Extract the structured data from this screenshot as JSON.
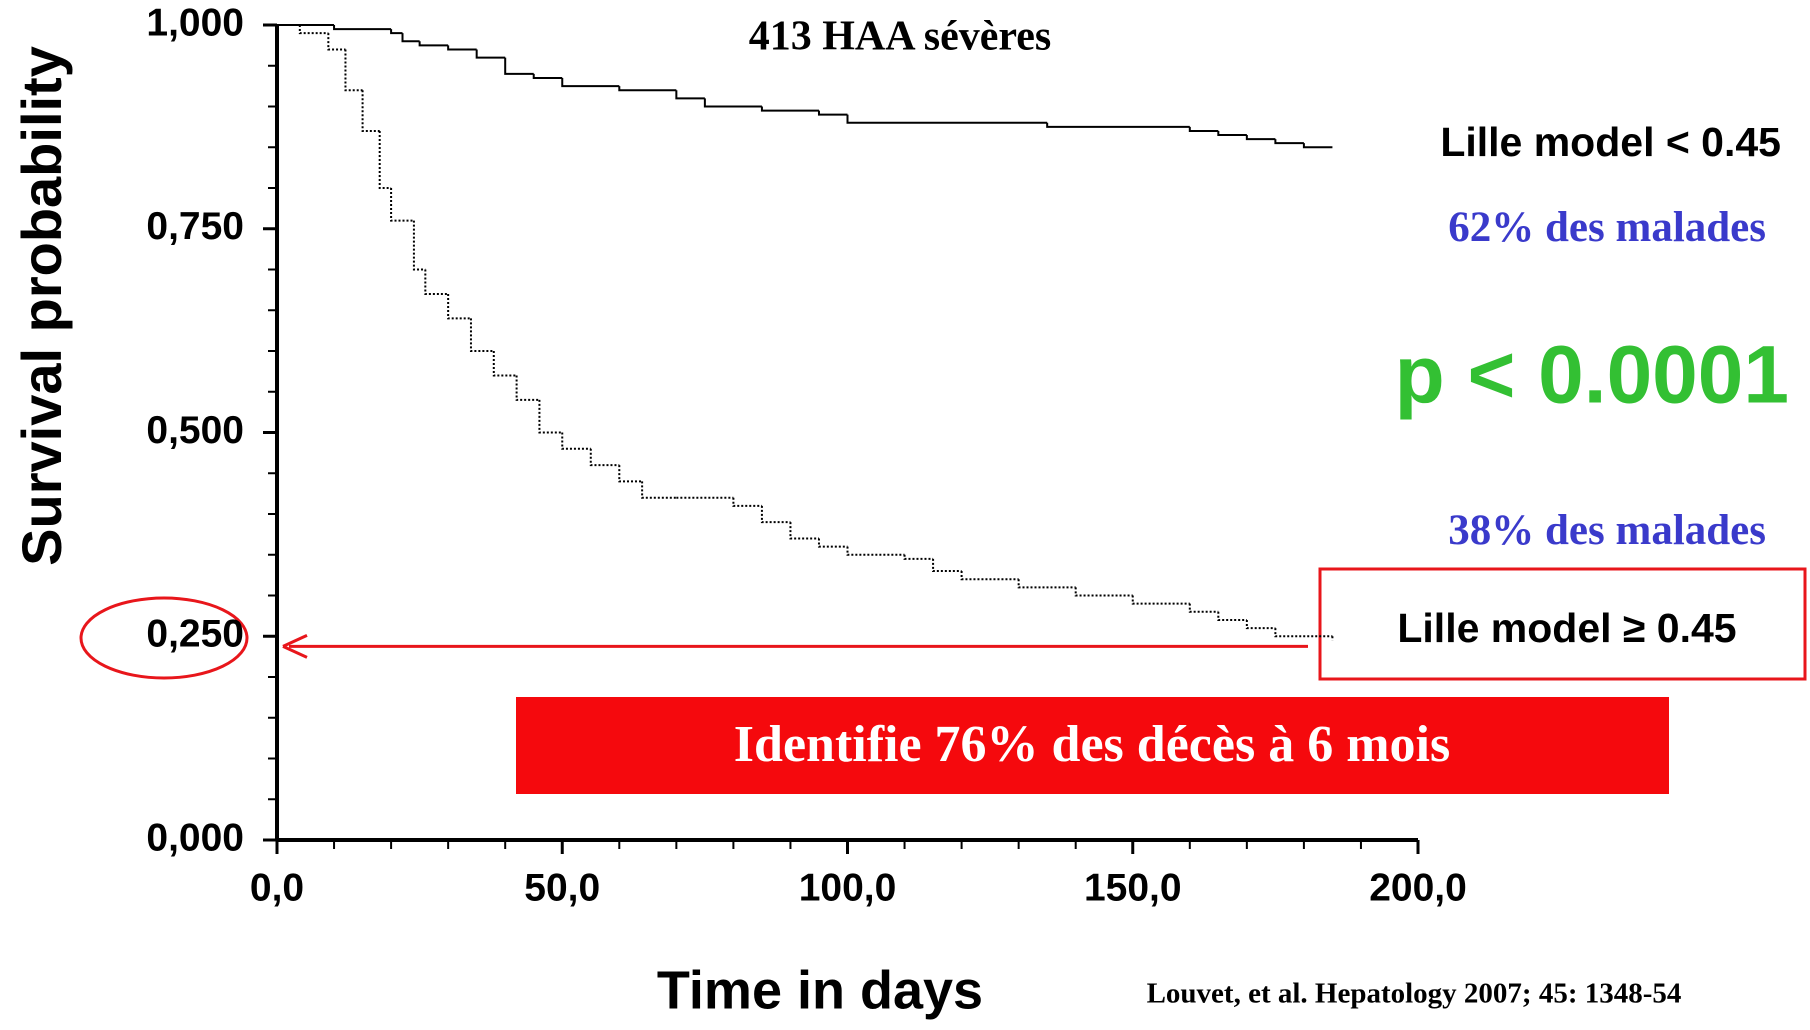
{
  "chart_data": {
    "type": "step",
    "title": "413 HAA sévères",
    "xlabel": "Time in days",
    "ylabel": "Survival probability",
    "xlim": [
      0,
      200
    ],
    "ylim": [
      0,
      1
    ],
    "xticks": [
      {
        "value": 0,
        "label": "0,0"
      },
      {
        "value": 50,
        "label": "50,0"
      },
      {
        "value": 100,
        "label": "100,0"
      },
      {
        "value": 150,
        "label": "150,0"
      },
      {
        "value": 200,
        "label": "200,0"
      }
    ],
    "yticks": [
      {
        "value": 0,
        "label": "0,000"
      },
      {
        "value": 0.25,
        "label": "0,250"
      },
      {
        "value": 0.5,
        "label": "0,500"
      },
      {
        "value": 0.75,
        "label": "0,750"
      },
      {
        "value": 1,
        "label": "1,000"
      }
    ],
    "xminor": [
      10,
      20,
      30,
      40,
      60,
      70,
      80,
      90,
      110,
      120,
      130,
      140,
      160,
      170,
      180,
      190
    ],
    "yminor": [
      0.05,
      0.1,
      0.15,
      0.2,
      0.3,
      0.35,
      0.4,
      0.45,
      0.55,
      0.6,
      0.65,
      0.7,
      0.8,
      0.85,
      0.9,
      0.95
    ],
    "series": [
      {
        "name": "Lille model < 0.45",
        "color": "#000000",
        "line_style": "solid",
        "x": [
          0,
          10,
          20,
          22,
          25,
          30,
          35,
          40,
          45,
          50,
          60,
          70,
          75,
          85,
          95,
          100,
          135,
          160,
          165,
          170,
          175,
          180,
          185
        ],
        "values": [
          1.0,
          0.995,
          0.99,
          0.98,
          0.975,
          0.97,
          0.96,
          0.94,
          0.935,
          0.925,
          0.92,
          0.91,
          0.9,
          0.895,
          0.89,
          0.88,
          0.875,
          0.87,
          0.865,
          0.86,
          0.855,
          0.85,
          0.85
        ]
      },
      {
        "name": "Lille model ≥ 0.45",
        "color": "#000000",
        "line_style": "dotted",
        "x": [
          0,
          4,
          9,
          12,
          15,
          18,
          20,
          24,
          26,
          30,
          34,
          38,
          42,
          46,
          50,
          55,
          60,
          64,
          70,
          80,
          85,
          90,
          95,
          100,
          110,
          115,
          120,
          130,
          140,
          150,
          160,
          165,
          170,
          175,
          185
        ],
        "values": [
          1.0,
          0.99,
          0.97,
          0.92,
          0.87,
          0.8,
          0.76,
          0.7,
          0.67,
          0.64,
          0.6,
          0.57,
          0.54,
          0.5,
          0.48,
          0.46,
          0.44,
          0.42,
          0.42,
          0.41,
          0.39,
          0.37,
          0.36,
          0.35,
          0.345,
          0.33,
          0.32,
          0.31,
          0.3,
          0.29,
          0.28,
          0.27,
          0.26,
          0.25,
          0.245
        ]
      }
    ],
    "annotations": {
      "upper_share": "62% des malades",
      "p_value": "p < 0.0001",
      "lower_share": "38% des malades",
      "banner": "Identifie 76% des décès à 6 mois",
      "citation": "Louvet, et al. Hepatology 2007; 45: 1348-54"
    }
  }
}
